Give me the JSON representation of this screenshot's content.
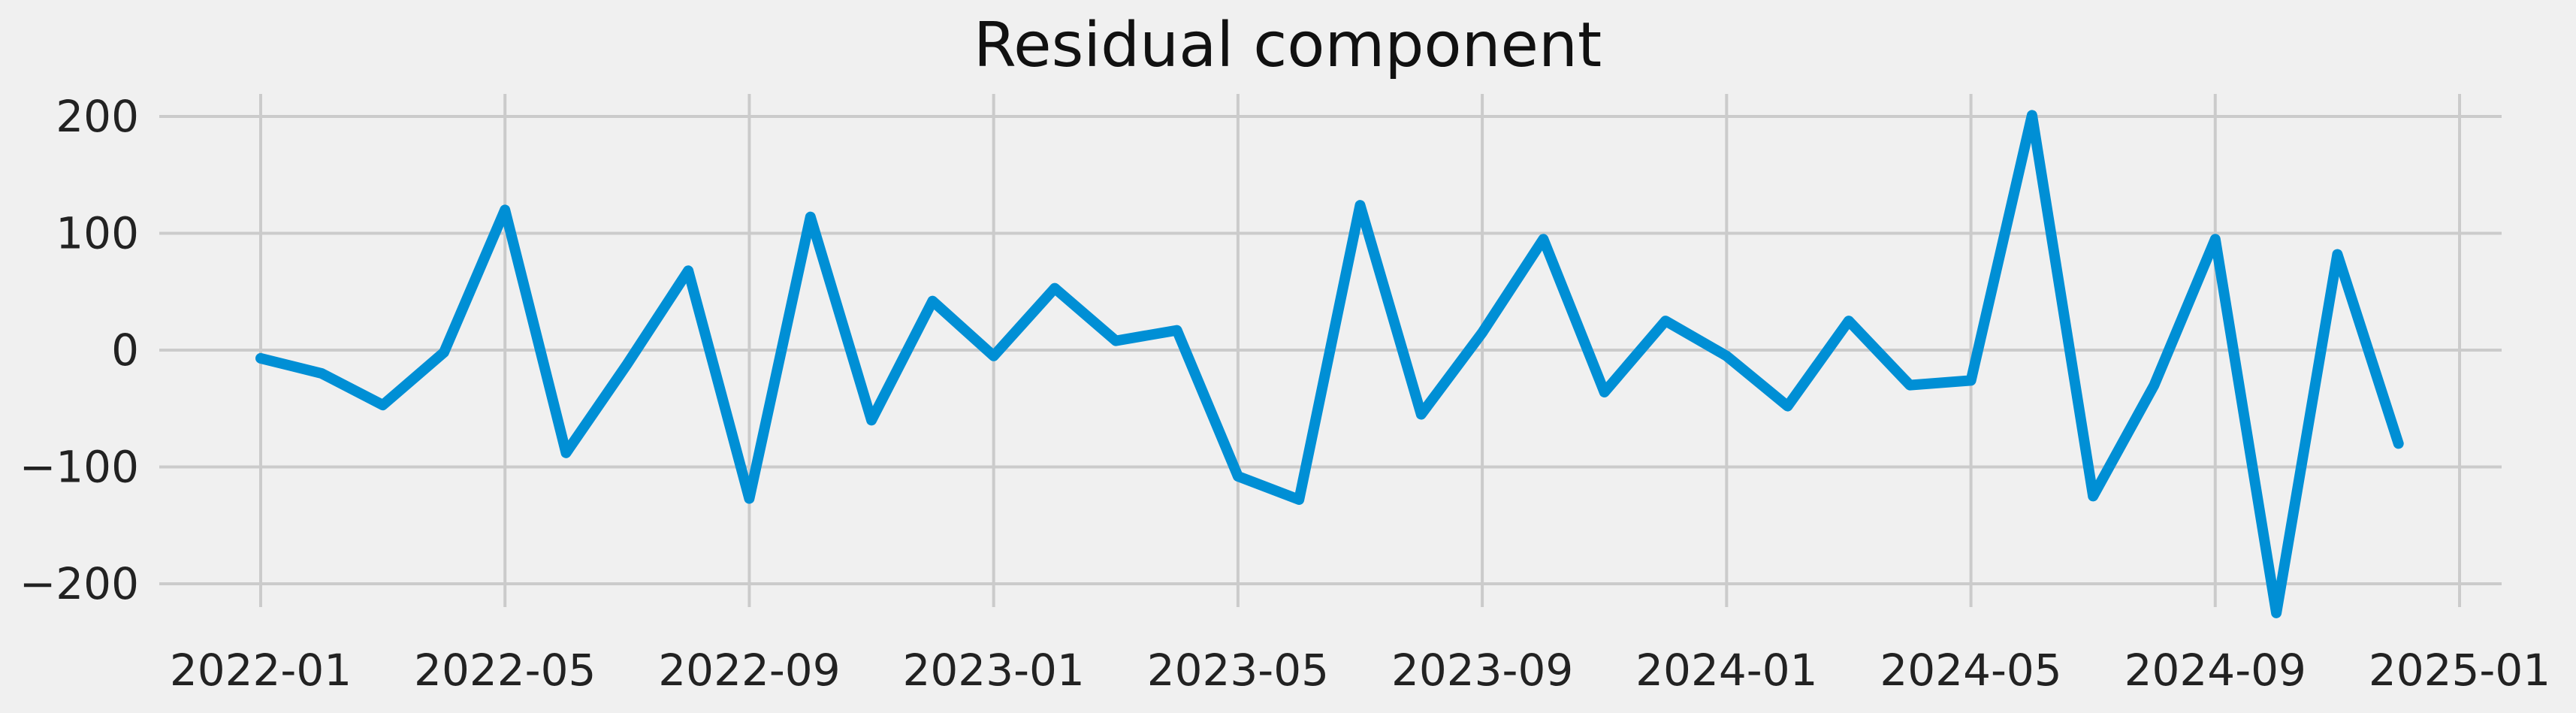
{
  "chart_data": {
    "type": "line",
    "title": "Residual component",
    "xlabel": "",
    "ylabel": "",
    "grid": true,
    "x_ticks": [
      "2022-01",
      "2022-05",
      "2022-09",
      "2023-01",
      "2023-05",
      "2023-09",
      "2024-01",
      "2024-05",
      "2024-09",
      "2025-01"
    ],
    "y_ticks": [
      200,
      100,
      0,
      -100,
      -200
    ],
    "y_tick_labels": [
      "200",
      "100",
      "0",
      "−100",
      "−200"
    ],
    "ylim": [
      -240,
      220
    ],
    "xlim": [
      "2021-12",
      "2025-01"
    ],
    "series": [
      {
        "color": "#008fd5",
        "x": [
          "2022-01",
          "2022-02",
          "2022-03",
          "2022-04",
          "2022-05",
          "2022-06",
          "2022-07",
          "2022-08",
          "2022-09",
          "2022-10",
          "2022-11",
          "2022-12",
          "2023-01",
          "2023-02",
          "2023-03",
          "2023-04",
          "2023-05",
          "2023-06",
          "2023-07",
          "2023-08",
          "2023-09",
          "2023-10",
          "2023-11",
          "2023-12",
          "2024-01",
          "2024-02",
          "2024-03",
          "2024-04",
          "2024-05",
          "2024-06",
          "2024-07",
          "2024-08",
          "2024-09",
          "2024-10",
          "2024-11",
          "2024-12"
        ],
        "values": [
          -7,
          -20,
          -47,
          -2,
          120,
          -88,
          -12,
          68,
          -127,
          114,
          -60,
          42,
          -5,
          53,
          8,
          17,
          -108,
          -128,
          124,
          -55,
          15,
          95,
          -36,
          25,
          -5,
          -48,
          25,
          -30,
          -26,
          201,
          -125,
          -30,
          95,
          -225,
          82,
          -80
        ]
      }
    ]
  }
}
